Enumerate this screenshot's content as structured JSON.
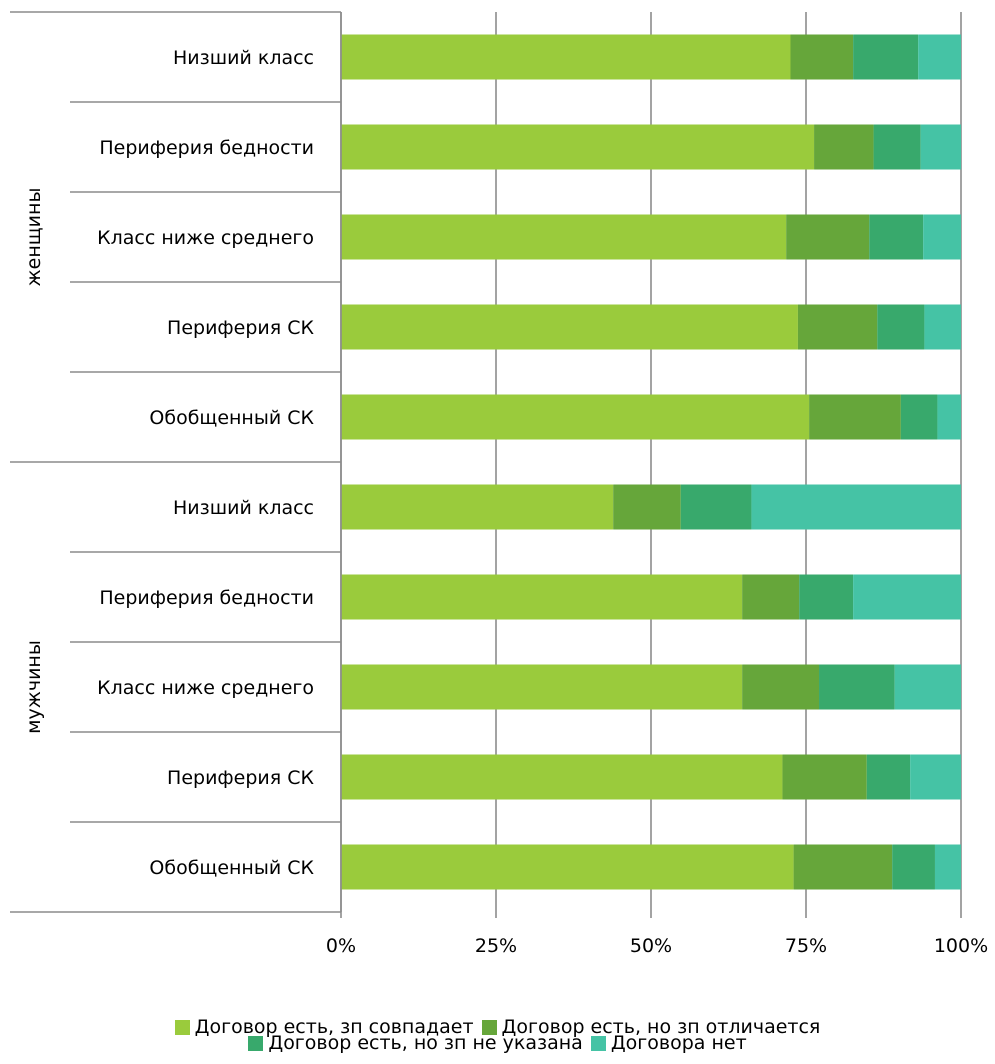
{
  "chart_data": {
    "type": "bar",
    "orientation": "horizontal",
    "stacked": true,
    "percent": true,
    "title": "",
    "xlabel": "",
    "ylabel": "",
    "xlim": [
      0,
      100
    ],
    "x_ticks": [
      "0%",
      "25%",
      "50%",
      "75%",
      "100%"
    ],
    "grid": true,
    "legend_position": "bottom",
    "groups": [
      {
        "name": "женщины",
        "categories": [
          "Низший класс",
          "Периферия бедности",
          "Класс ниже среднего",
          "Периферия СК",
          "Обобщенный СК"
        ]
      },
      {
        "name": "мужчины",
        "categories": [
          "Низший класс",
          "Периферия бедности",
          "Класс ниже среднего",
          "Периферия СК",
          "Обобщенный СК"
        ]
      }
    ],
    "series": [
      {
        "name": "Договор есть, зп совпадает",
        "color": "#9ACB3C",
        "values": [
          72.5,
          76.3,
          71.8,
          73.7,
          75.5,
          43.9,
          64.7,
          64.7,
          71.2,
          73.0
        ]
      },
      {
        "name": "Договор есть, но зп отличается",
        "color": "#66A63A",
        "values": [
          10.1,
          9.6,
          13.4,
          12.8,
          14.8,
          10.9,
          9.2,
          12.4,
          13.6,
          15.9
        ]
      },
      {
        "name": "Договор есть, но зп не указана",
        "color": "#38A96C",
        "values": [
          10.5,
          7.6,
          8.7,
          7.6,
          5.9,
          11.4,
          8.7,
          12.2,
          7.0,
          6.9
        ]
      },
      {
        "name": "Договора нет",
        "color": "#45C3A5",
        "values": [
          6.9,
          6.5,
          6.1,
          5.9,
          3.8,
          33.8,
          17.4,
          10.7,
          8.2,
          4.2
        ]
      }
    ]
  }
}
